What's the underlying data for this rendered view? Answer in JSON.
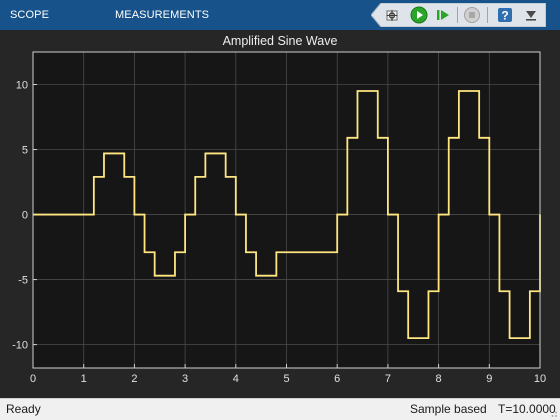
{
  "toolbar": {
    "tabs": [
      {
        "label": "SCOPE"
      },
      {
        "label": "MEASUREMENTS"
      }
    ],
    "buttons": [
      {
        "icon": "highlight-block-icon"
      },
      {
        "icon": "run-icon"
      },
      {
        "icon": "step-forward-icon"
      },
      {
        "icon": "stop-icon"
      },
      {
        "icon": "help-icon"
      },
      {
        "icon": "dock-icon"
      }
    ],
    "background": "#17528a"
  },
  "chart_data": {
    "type": "line",
    "title": "Amplified Sine  Wave",
    "xlabel": "",
    "ylabel": "",
    "xlim": [
      0,
      10
    ],
    "ylim": [
      -11.8,
      12.5
    ],
    "xticks": [
      0,
      1,
      2,
      3,
      4,
      5,
      6,
      7,
      8,
      9,
      10
    ],
    "yticks": [
      -10,
      -5,
      0,
      5,
      10
    ],
    "grid": true,
    "line_color": "#ffe680",
    "background": "#161616",
    "series": [
      {
        "step": true,
        "x": [
          0,
          1.2,
          1.4,
          1.8,
          2.0,
          2.2,
          2.4,
          2.8,
          3.0,
          3.2,
          3.4,
          3.8,
          4.0,
          4.2,
          4.4,
          4.8,
          6.0,
          6.2,
          6.4,
          6.8,
          7.0,
          7.2,
          7.4,
          7.8,
          8.0,
          8.2,
          8.4,
          8.8,
          9.0,
          9.2,
          9.4,
          9.8,
          10.0
        ],
        "y": [
          0,
          2.9,
          4.7,
          2.9,
          0,
          -2.9,
          -4.7,
          -2.9,
          0,
          2.9,
          4.7,
          2.9,
          0,
          -2.9,
          -4.7,
          -2.9,
          0,
          5.9,
          9.5,
          5.9,
          0,
          -5.9,
          -9.5,
          -5.9,
          0,
          5.9,
          9.5,
          5.9,
          0,
          -5.9,
          -9.5,
          -5.9,
          0
        ]
      }
    ]
  },
  "status": {
    "left": "Ready",
    "mode": "Sample based",
    "time": "T=10.0000"
  }
}
